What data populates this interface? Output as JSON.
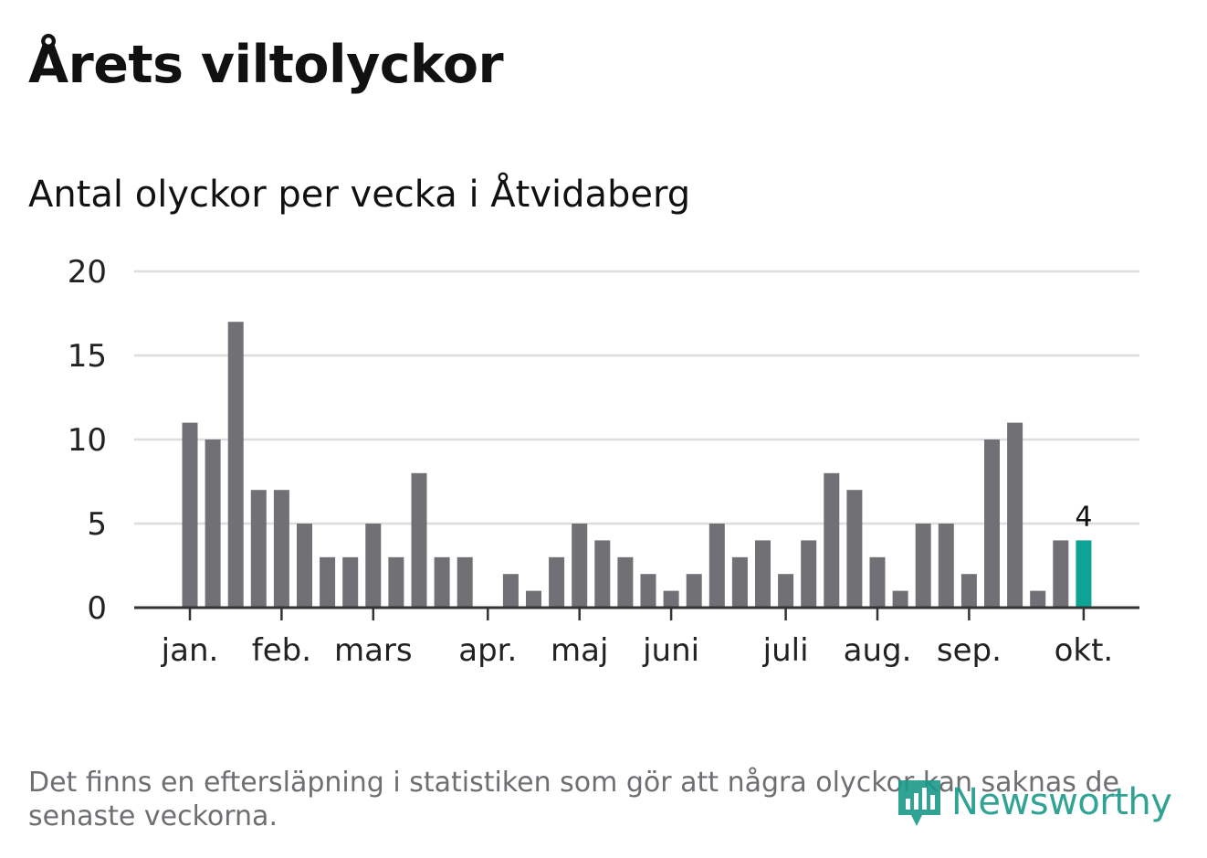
{
  "title": "Årets viltolyckor",
  "note": "Det finns en eftersläpning i statistiken som gör att några olyckor kan saknas de senaste veckorna.",
  "logo": {
    "text": "Newsworthy",
    "icon": "bar-chart-speech-bubble-icon"
  },
  "colors": {
    "bar": "#707075",
    "highlight": "#0ea394",
    "grid": "#dddddd",
    "axis": "#333333"
  },
  "chart_data": {
    "type": "bar",
    "title": "Antal olyckor per vecka i Åtvidaberg",
    "xlabel": "",
    "ylabel": "",
    "ylim": [
      0,
      20
    ],
    "yticks": [
      0,
      5,
      10,
      15,
      20
    ],
    "values": [
      11,
      10,
      17,
      7,
      7,
      5,
      3,
      3,
      5,
      3,
      8,
      3,
      3,
      0,
      2,
      1,
      3,
      5,
      4,
      3,
      2,
      1,
      2,
      5,
      3,
      4,
      2,
      4,
      8,
      7,
      3,
      1,
      5,
      5,
      2,
      10,
      11,
      1,
      4,
      4
    ],
    "highlight_index": 39,
    "highlight_label": "4",
    "month_labels": [
      {
        "label": "jan.",
        "pos": 0
      },
      {
        "label": "feb.",
        "pos": 4
      },
      {
        "label": "mars",
        "pos": 8
      },
      {
        "label": "apr.",
        "pos": 13
      },
      {
        "label": "maj",
        "pos": 17
      },
      {
        "label": "juni",
        "pos": 21
      },
      {
        "label": "juli",
        "pos": 26
      },
      {
        "label": "aug.",
        "pos": 30
      },
      {
        "label": "sep.",
        "pos": 34
      },
      {
        "label": "okt.",
        "pos": 39
      }
    ],
    "grid": true,
    "legend": "none"
  }
}
